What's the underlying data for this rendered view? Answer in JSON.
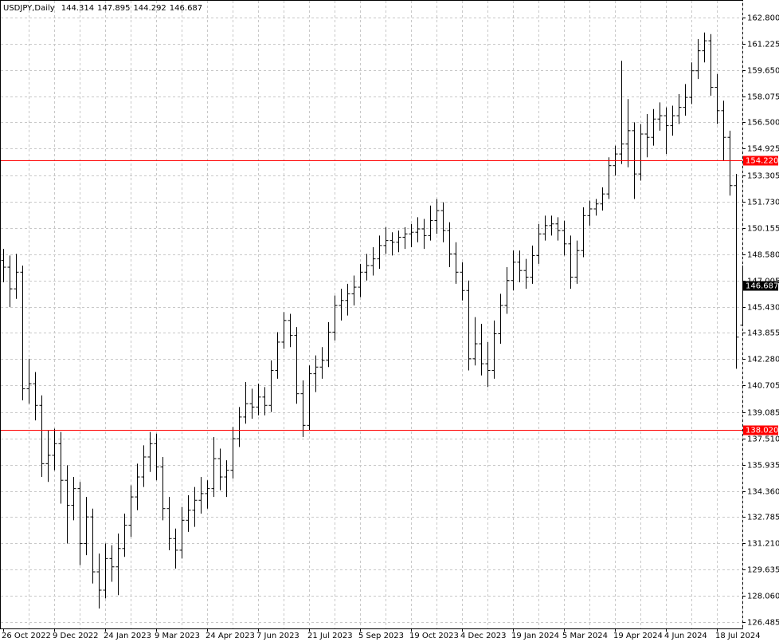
{
  "chart_data": {
    "type": "ohlc",
    "title": "USDJPY,Daily",
    "color": "#000000",
    "grid": true,
    "categories": [
      "26 Oct 2022",
      null,
      null,
      null,
      null,
      null,
      null,
      null,
      "9 Dec 2022",
      null,
      null,
      null,
      null,
      null,
      null,
      null,
      "24 Jan 2023",
      null,
      null,
      null,
      null,
      null,
      null,
      null,
      "9 Mar 2023",
      null,
      null,
      null,
      null,
      null,
      null,
      null,
      "24 Apr 2023",
      null,
      null,
      null,
      null,
      null,
      null,
      null,
      "7 Jun 2023",
      null,
      null,
      null,
      null,
      null,
      null,
      null,
      "21 Jul 2023",
      null,
      null,
      null,
      null,
      null,
      null,
      null,
      "5 Sep 2023",
      null,
      null,
      null,
      null,
      null,
      null,
      null,
      "19 Oct 2023",
      null,
      null,
      null,
      null,
      null,
      null,
      null,
      "4 Dec 2023",
      null,
      null,
      null,
      null,
      null,
      null,
      null,
      "19 Jan 2024",
      null,
      null,
      null,
      null,
      null,
      null,
      null,
      "5 Mar 2024",
      null,
      null,
      null,
      null,
      null,
      null,
      null,
      "19 Apr 2024",
      null,
      null,
      null,
      null,
      null,
      null,
      null,
      "4 Jun 2024",
      null,
      null,
      null,
      null,
      null,
      null,
      null,
      "18 Jul 2024",
      null,
      null,
      null,
      null
    ],
    "open": [
      148.2,
      147.8,
      146.5,
      147.5,
      140.5,
      140.8,
      139.5,
      136.0,
      136.5,
      137.2,
      135.0,
      133.5,
      134.5,
      131.2,
      132.8,
      129.5,
      128.4,
      130.3,
      129.8,
      130.9,
      132.3,
      134.0,
      135.2,
      136.4,
      137.2,
      135.8,
      133.3,
      131.5,
      130.8,
      132.6,
      133.2,
      133.8,
      134.2,
      134.5,
      136.3,
      135.2,
      135.6,
      137.5,
      138.8,
      139.6,
      139.4,
      140.0,
      139.5,
      141.6,
      143.3,
      144.6,
      143.7,
      140.2,
      138.3,
      141.4,
      141.8,
      142.2,
      143.9,
      145.5,
      145.8,
      146.2,
      146.6,
      147.5,
      147.9,
      148.3,
      149.1,
      149.4,
      149.3,
      149.6,
      149.8,
      149.9,
      150.1,
      149.7,
      150.6,
      151.2,
      150.0,
      148.6,
      147.5,
      146.4,
      142.3,
      143.2,
      142.0,
      141.6,
      143.8,
      145.5,
      147.0,
      148.1,
      147.6,
      147.2,
      148.5,
      149.8,
      150.3,
      150.4,
      150.0,
      149.2,
      147.2,
      148.8,
      150.9,
      151.3,
      151.6,
      152.2,
      153.9,
      154.6,
      155.2,
      156.0,
      153.4,
      155.8,
      155.6,
      156.7,
      156.9,
      156.3,
      156.9,
      157.4,
      158.0,
      159.6,
      160.8,
      161.4,
      158.6,
      157.2,
      155.6,
      152.7,
      144.314
    ],
    "high": [
      148.9,
      148.5,
      148.6,
      147.9,
      142.3,
      141.5,
      140.1,
      138.0,
      138.1,
      137.9,
      135.9,
      135.2,
      134.9,
      134.0,
      133.3,
      130.6,
      131.2,
      131.1,
      131.8,
      133.0,
      134.7,
      136.0,
      137.1,
      137.9,
      137.8,
      136.4,
      134.0,
      132.1,
      133.4,
      134.1,
      134.6,
      135.2,
      135.0,
      137.6,
      136.9,
      136.2,
      138.2,
      139.4,
      140.9,
      140.5,
      140.8,
      140.6,
      142.2,
      143.9,
      145.1,
      145.0,
      144.2,
      141.0,
      141.9,
      142.5,
      143.0,
      144.5,
      146.1,
      146.5,
      146.8,
      147.3,
      148.0,
      148.6,
      149.0,
      149.7,
      150.2,
      149.9,
      150.0,
      150.2,
      150.4,
      150.8,
      150.7,
      151.5,
      151.9,
      151.7,
      150.5,
      149.3,
      148.1,
      147.0,
      144.8,
      144.4,
      143.3,
      144.6,
      146.2,
      147.8,
      148.8,
      148.8,
      148.3,
      149.1,
      150.4,
      150.9,
      150.9,
      150.8,
      150.6,
      149.7,
      149.4,
      151.4,
      151.8,
      151.9,
      152.6,
      154.4,
      155.1,
      160.2,
      157.9,
      156.5,
      156.4,
      157.0,
      157.3,
      157.7,
      157.4,
      157.5,
      158.2,
      158.8,
      160.1,
      161.5,
      161.9,
      161.8,
      159.4,
      157.8,
      156.0,
      153.4,
      147.895
    ],
    "low": [
      146.9,
      145.4,
      145.9,
      139.8,
      139.6,
      138.6,
      135.2,
      134.9,
      135.6,
      133.6,
      131.2,
      132.6,
      129.9,
      130.5,
      128.8,
      127.3,
      127.9,
      128.9,
      128.1,
      130.4,
      131.6,
      133.2,
      134.6,
      135.5,
      135.0,
      132.6,
      130.8,
      129.7,
      130.3,
      131.9,
      132.2,
      133.0,
      133.3,
      134.0,
      134.4,
      134.0,
      135.1,
      137.0,
      138.4,
      138.7,
      138.9,
      138.9,
      139.1,
      141.1,
      142.9,
      143.0,
      139.6,
      137.6,
      138.0,
      140.3,
      141.1,
      141.8,
      143.4,
      144.6,
      144.9,
      145.5,
      146.0,
      147.0,
      147.3,
      147.7,
      148.6,
      148.5,
      148.7,
      148.9,
      149.0,
      149.3,
      148.9,
      149.4,
      149.8,
      149.3,
      147.8,
      146.8,
      145.8,
      141.6,
      141.9,
      141.3,
      140.6,
      141.1,
      143.2,
      145.0,
      146.4,
      146.9,
      146.5,
      146.8,
      148.0,
      149.4,
      149.7,
      149.4,
      148.5,
      146.5,
      146.8,
      148.4,
      150.3,
      150.9,
      151.2,
      151.9,
      153.3,
      154.0,
      153.8,
      151.9,
      153.0,
      154.4,
      155.1,
      156.0,
      154.6,
      155.7,
      156.4,
      156.9,
      157.6,
      159.1,
      160.1,
      158.1,
      156.4,
      154.2,
      152.1,
      141.7,
      144.292
    ],
    "close": [
      147.8,
      146.5,
      147.5,
      140.5,
      140.8,
      139.5,
      136.0,
      136.5,
      137.2,
      135.0,
      133.5,
      134.5,
      131.2,
      132.8,
      129.5,
      128.4,
      130.3,
      129.8,
      130.9,
      132.3,
      134.0,
      135.2,
      136.4,
      137.2,
      135.8,
      133.3,
      131.5,
      130.8,
      132.6,
      133.2,
      133.8,
      134.2,
      134.5,
      136.3,
      135.2,
      135.6,
      137.5,
      138.8,
      139.6,
      139.4,
      140.0,
      139.5,
      141.6,
      143.3,
      144.6,
      143.7,
      140.2,
      138.3,
      141.4,
      141.8,
      142.2,
      143.9,
      145.5,
      145.8,
      146.2,
      146.6,
      147.5,
      147.9,
      148.3,
      149.1,
      149.4,
      149.3,
      149.6,
      149.8,
      149.9,
      150.1,
      149.7,
      150.6,
      151.2,
      150.0,
      148.6,
      147.5,
      146.4,
      142.3,
      143.2,
      142.0,
      141.6,
      143.8,
      145.5,
      147.0,
      148.1,
      147.6,
      147.2,
      148.5,
      149.8,
      150.3,
      150.4,
      150.0,
      149.2,
      147.2,
      148.8,
      150.9,
      151.3,
      151.6,
      152.2,
      153.9,
      154.6,
      155.2,
      156.0,
      153.4,
      155.8,
      155.6,
      156.7,
      156.9,
      156.3,
      156.9,
      157.4,
      158.0,
      159.6,
      160.8,
      161.4,
      158.6,
      157.2,
      155.6,
      152.7,
      143.6,
      146.687
    ],
    "ylim": [
      126.1,
      163.85
    ],
    "yticks": [
      {
        "value": 126.485,
        "label": "126.485"
      },
      {
        "value": 128.06,
        "label": "128.060"
      },
      {
        "value": 129.635,
        "label": "129.635"
      },
      {
        "value": 131.21,
        "label": "131.210"
      },
      {
        "value": 132.785,
        "label": "132.785"
      },
      {
        "value": 134.36,
        "label": "134.360"
      },
      {
        "value": 135.935,
        "label": "135.935"
      },
      {
        "value": 137.51,
        "label": "137.510"
      },
      {
        "value": 139.085,
        "label": "139.085"
      },
      {
        "value": 140.705,
        "label": "140.705"
      },
      {
        "value": 142.28,
        "label": "142.280"
      },
      {
        "value": 143.855,
        "label": "143.855"
      },
      {
        "value": 145.43,
        "label": "145.430"
      },
      {
        "value": 147.005,
        "label": "147.005"
      },
      {
        "value": 148.58,
        "label": "148.580"
      },
      {
        "value": 150.155,
        "label": "150.155"
      },
      {
        "value": 151.73,
        "label": "151.730"
      },
      {
        "value": 153.305,
        "label": "153.305"
      },
      {
        "value": 154.925,
        "label": "154.925"
      },
      {
        "value": 156.5,
        "label": "156.500"
      },
      {
        "value": 158.075,
        "label": "158.075"
      },
      {
        "value": 159.65,
        "label": "159.650"
      },
      {
        "value": 161.225,
        "label": "161.225"
      },
      {
        "value": 162.8,
        "label": "162.800"
      }
    ],
    "hlines": [
      {
        "value": 154.22,
        "label": "154.220",
        "color": "#ff0000"
      },
      {
        "value": 138.02,
        "label": "138.020",
        "color": "#ff0000"
      }
    ]
  }
}
